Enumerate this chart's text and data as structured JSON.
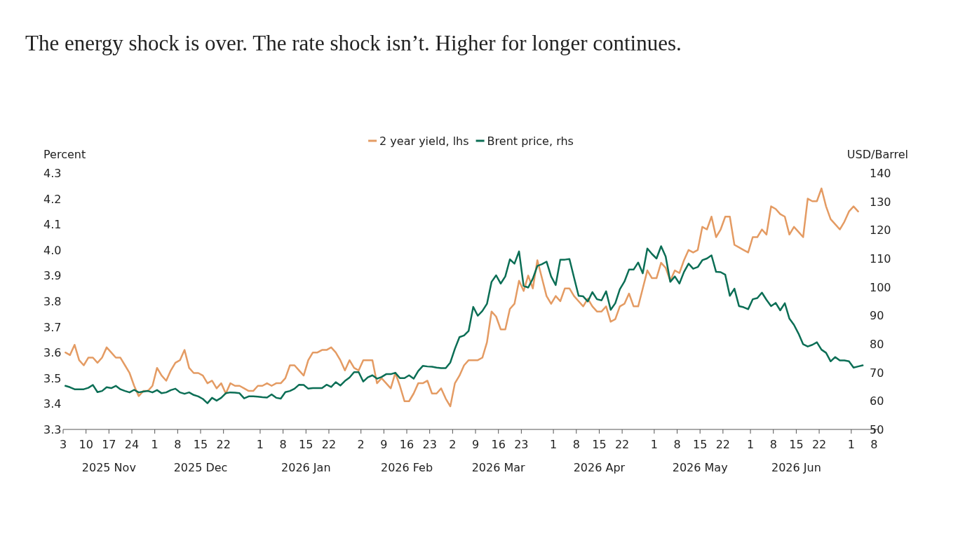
{
  "chart_data": {
    "type": "line",
    "title": "The energy shock is over. The rate shock isn’t. Higher for longer continues.",
    "categories": [
      "3",
      null,
      null,
      null,
      null,
      "10",
      null,
      null,
      null,
      null,
      "17\n2025 Nov",
      null,
      null,
      null,
      null,
      "24",
      null,
      null,
      null,
      null,
      "1",
      null,
      null,
      null,
      null,
      "8",
      null,
      null,
      null,
      null,
      "15\n2025 Dec",
      null,
      null,
      null,
      null,
      "22",
      null,
      null,
      null,
      null,
      null,
      null,
      null,
      "1",
      null,
      null,
      null,
      null,
      "8",
      null,
      null,
      null,
      null,
      "15\n2026 Jan",
      null,
      null,
      null,
      null,
      "22",
      null,
      null,
      null,
      null,
      null,
      null,
      "2",
      null,
      null,
      null,
      null,
      "9",
      null,
      null,
      null,
      null,
      "16\n2026 Feb",
      null,
      null,
      null,
      null,
      "23",
      null,
      null,
      null,
      null,
      "2",
      null,
      null,
      null,
      null,
      "9",
      null,
      null,
      null,
      null,
      "16\n2026 Mar",
      null,
      null,
      null,
      null,
      "23",
      null,
      null,
      null,
      null,
      null,
      null,
      "1",
      null,
      null,
      null,
      null,
      "8",
      null,
      null,
      null,
      null,
      "15\n2026 Apr",
      null,
      null,
      null,
      null,
      "22",
      null,
      null,
      null,
      null,
      null,
      null,
      "1",
      null,
      null,
      null,
      null,
      "8",
      null,
      null,
      null,
      null,
      "15\n2026 May",
      null,
      null,
      null,
      null,
      "22",
      null,
      null,
      null,
      null,
      null,
      "1",
      null,
      null,
      null,
      null,
      "8",
      null,
      null,
      null,
      null,
      "15\n2026 Jun",
      null,
      null,
      null,
      null,
      "22",
      null,
      null,
      null,
      null,
      null,
      null,
      "1",
      null,
      null,
      null,
      null,
      "8"
    ],
    "series": [
      {
        "name": "2 year yield, lhs",
        "color": "#e49b63",
        "axis": "y",
        "values": [
          3.6,
          3.59,
          3.63,
          3.57,
          3.55,
          3.58,
          3.58,
          3.56,
          3.58,
          3.62,
          3.6,
          3.58,
          3.58,
          3.55,
          3.52,
          3.47,
          3.43,
          3.45,
          3.45,
          3.47,
          3.54,
          3.51,
          3.49,
          3.53,
          3.56,
          3.57,
          3.61,
          3.54,
          3.52,
          3.52,
          3.51,
          3.48,
          3.49,
          3.46,
          3.48,
          3.44,
          3.48,
          3.47,
          3.47,
          3.46,
          3.45,
          3.45,
          3.47,
          3.47,
          3.48,
          3.47,
          3.48,
          3.48,
          3.5,
          3.55,
          3.55,
          3.53,
          3.51,
          3.57,
          3.6,
          3.6,
          3.61,
          3.61,
          3.62,
          3.6,
          3.57,
          3.53,
          3.57,
          3.54,
          3.53,
          3.57,
          3.57,
          3.57,
          3.48,
          3.5,
          3.48,
          3.46,
          3.52,
          3.47,
          3.41,
          3.41,
          3.44,
          3.48,
          3.48,
          3.49,
          3.44,
          3.44,
          3.46,
          3.42,
          3.39,
          3.48,
          3.51,
          3.55,
          3.57,
          3.57,
          3.57,
          3.58,
          3.64,
          3.76,
          3.74,
          3.69,
          3.69,
          3.77,
          3.79,
          3.88,
          3.84,
          3.9,
          3.85,
          3.96,
          3.89,
          3.82,
          3.79,
          3.82,
          3.8,
          3.85,
          3.85,
          3.82,
          3.8,
          3.78,
          3.81,
          3.78,
          3.76,
          3.76,
          3.78,
          3.72,
          3.73,
          3.78,
          3.79,
          3.83,
          3.78,
          3.78,
          3.85,
          3.92,
          3.89,
          3.89,
          3.95,
          3.93,
          3.88,
          3.92,
          3.91,
          3.96,
          4.0,
          3.99,
          4.0,
          4.09,
          4.08,
          4.13,
          4.05,
          4.08,
          4.13,
          4.13,
          4.02,
          4.01,
          4.0,
          3.99,
          4.05,
          4.05,
          4.08,
          4.06,
          4.17,
          4.16,
          4.14,
          4.13,
          4.06,
          4.09,
          4.07,
          4.05,
          4.2,
          4.19,
          4.19,
          4.24,
          4.17,
          4.12,
          4.1,
          4.08,
          4.11,
          4.15,
          4.17,
          4.15,
          null,
          null,
          null,
          null
        ]
      },
      {
        "name": "Brent price, rhs",
        "color": "#0b6e55",
        "axis": "y2",
        "values": [
          65.3,
          64.8,
          64.1,
          64.1,
          64.1,
          64.6,
          65.6,
          63.1,
          63.5,
          64.8,
          64.5,
          65.3,
          64.1,
          63.5,
          63.0,
          63.9,
          63.0,
          63.3,
          63.5,
          63.0,
          63.8,
          62.7,
          63.0,
          63.8,
          64.3,
          63.0,
          62.5,
          63.0,
          62.1,
          61.6,
          60.7,
          59.2,
          61.1,
          60.1,
          61.1,
          62.7,
          63.0,
          62.9,
          62.7,
          60.9,
          61.6,
          61.6,
          61.5,
          61.3,
          61.2,
          62.3,
          61.1,
          60.8,
          63.1,
          63.5,
          64.3,
          65.7,
          65.6,
          64.3,
          64.5,
          64.5,
          64.5,
          65.7,
          64.9,
          66.6,
          65.4,
          67.0,
          68.2,
          70.1,
          70.1,
          66.8,
          68.3,
          69.0,
          67.8,
          68.4,
          69.4,
          69.4,
          69.9,
          68.0,
          68.0,
          69.0,
          67.8,
          70.5,
          72.3,
          72.1,
          72.0,
          71.7,
          71.5,
          71.5,
          73.5,
          78.3,
          82.4,
          83.0,
          84.6,
          93.0,
          89.9,
          91.6,
          94.1,
          101.8,
          104.1,
          101.2,
          103.7,
          109.7,
          108.2,
          112.5,
          100.4,
          99.8,
          102.9,
          107.4,
          108.0,
          108.9,
          103.7,
          100.7,
          109.6,
          109.6,
          109.8,
          103.3,
          96.9,
          96.7,
          94.9,
          98.2,
          95.7,
          95.3,
          98.5,
          92.0,
          94.3,
          99.2,
          101.9,
          106.1,
          106.1,
          108.6,
          104.8,
          113.5,
          111.6,
          110.0,
          114.3,
          110.7,
          101.8,
          103.7,
          101.2,
          105.3,
          108.2,
          106.4,
          107.0,
          109.4,
          110.0,
          111.1,
          105.3,
          105.2,
          104.3,
          96.9,
          99.4,
          93.3,
          92.9,
          92.2,
          95.7,
          96.1,
          98.0,
          95.5,
          93.3,
          94.4,
          91.8,
          94.3,
          88.9,
          86.7,
          83.6,
          79.9,
          79.1,
          79.7,
          80.6,
          78.0,
          76.9,
          73.9,
          75.4,
          74.2,
          74.2,
          73.9,
          71.7,
          72.1,
          72.5,
          null,
          null,
          null
        ]
      }
    ],
    "ylabel": "Percent",
    "y2label": "USD/Barrel",
    "ylim": [
      3.3,
      4.3
    ],
    "yticks": [
      3.3,
      3.4,
      3.5,
      3.6,
      3.7,
      3.8,
      3.9,
      {
        "value": 4,
        "label": "4.0"
      },
      4.1,
      4.2,
      4.3
    ],
    "y2lim": [
      50,
      140
    ],
    "y2ticks": [
      50,
      60,
      70,
      80,
      90,
      100,
      110,
      120,
      130,
      140
    ],
    "legend": "top",
    "grid": false
  }
}
